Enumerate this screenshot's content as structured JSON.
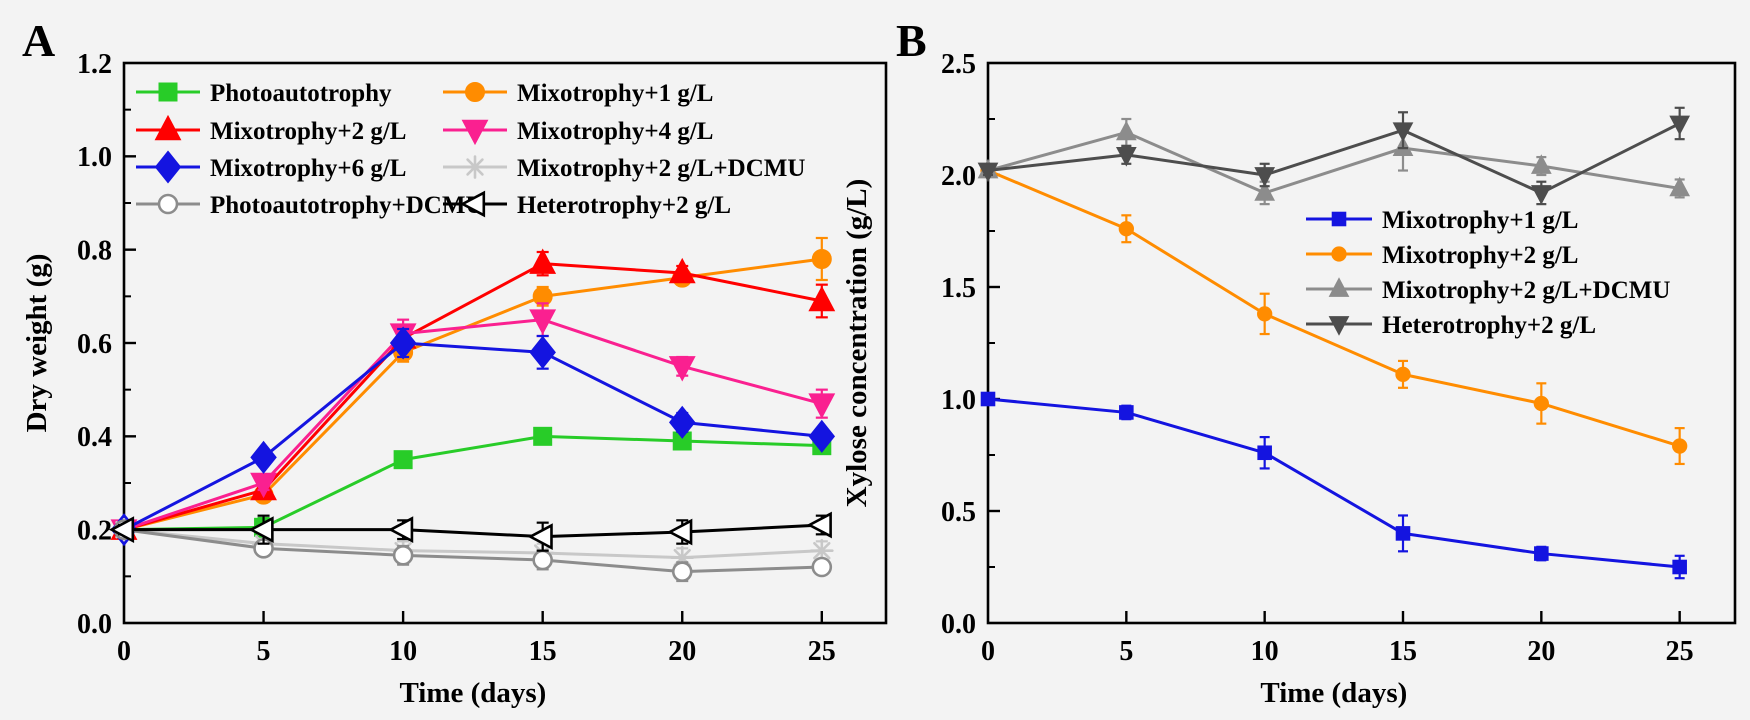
{
  "figure": {
    "background": "#f3f3f3",
    "panel_labels": [
      "A",
      "B"
    ]
  },
  "chart_data": [
    {
      "type": "line",
      "panel_label": "A",
      "title": "",
      "xlabel": "Time (days)",
      "ylabel": "Dry weight (g)",
      "x": [
        0,
        5,
        10,
        15,
        20,
        25
      ],
      "xlim": [
        0,
        27.3
      ],
      "ylim": [
        0,
        1.2
      ],
      "xticks": [
        "0",
        "5",
        "10",
        "15",
        "20",
        "25"
      ],
      "xtick_values": [
        0,
        5,
        10,
        15,
        20,
        25
      ],
      "ytick_labels": [
        "0.0",
        "0.2",
        "0.4",
        "0.6",
        "0.8",
        "1.0",
        "1.2"
      ],
      "ytick_values": [
        0,
        0.2,
        0.4,
        0.6,
        0.8,
        1.0,
        1.2
      ],
      "y_major_step": 0.2,
      "y_minor_step": 0.1,
      "grid": false,
      "legend_position": "top-left-inside",
      "legend_columns": 2,
      "series": [
        {
          "name": "Photoautotrophy",
          "color": "#28CC28",
          "marker": "square",
          "fill": "filled",
          "values": [
            0.2,
            0.205,
            0.35,
            0.4,
            0.39,
            0.38
          ],
          "errors": [
            0.01,
            0.02,
            0.015,
            0.015,
            0.01,
            0.01
          ]
        },
        {
          "name": "Mixotrophy+1 g/L",
          "color": "#FF8C00",
          "marker": "circle",
          "fill": "filled",
          "values": [
            0.2,
            0.275,
            0.58,
            0.7,
            0.74,
            0.78
          ],
          "errors": [
            0.01,
            0.015,
            0.02,
            0.02,
            0.015,
            0.045
          ]
        },
        {
          "name": "Mixotrophy+2 g/L",
          "color": "#FF0000",
          "marker": "triangle-up",
          "fill": "filled",
          "values": [
            0.2,
            0.285,
            0.61,
            0.77,
            0.75,
            0.69
          ],
          "errors": [
            0.01,
            0.015,
            0.02,
            0.025,
            0.015,
            0.035
          ]
        },
        {
          "name": "Mixotrophy+4 g/L",
          "color": "#FA2090",
          "marker": "triangle-down",
          "fill": "filled",
          "values": [
            0.2,
            0.3,
            0.62,
            0.65,
            0.55,
            0.47
          ],
          "errors": [
            0.01,
            0.015,
            0.03,
            0.035,
            0.02,
            0.03
          ]
        },
        {
          "name": "Mixotrophy+6 g/L",
          "color": "#1414E0",
          "marker": "diamond",
          "fill": "filled",
          "values": [
            0.2,
            0.355,
            0.6,
            0.58,
            0.43,
            0.4
          ],
          "errors": [
            0.01,
            0.01,
            0.03,
            0.035,
            0.02,
            0.015
          ]
        },
        {
          "name": "Mixotrophy+2 g/L+DCMU",
          "color": "#C8C8C8",
          "marker": "asterisk",
          "fill": "line",
          "values": [
            0.2,
            0.17,
            0.155,
            0.15,
            0.14,
            0.155
          ],
          "errors": [
            0.01,
            0.02,
            0.02,
            0.02,
            0.02,
            0.02
          ]
        },
        {
          "name": "Photoautotrophy+DCMU",
          "color": "#8C8C8C",
          "marker": "circle",
          "fill": "open",
          "values": [
            0.2,
            0.16,
            0.145,
            0.135,
            0.11,
            0.12
          ],
          "errors": [
            0.01,
            0.015,
            0.02,
            0.02,
            0.02,
            0.015
          ]
        },
        {
          "name": "Heterotrophy+2 g/L",
          "color": "#000000",
          "marker": "triangle-left",
          "fill": "open",
          "values": [
            0.2,
            0.2,
            0.2,
            0.185,
            0.195,
            0.21
          ],
          "errors": [
            0.01,
            0.03,
            0.02,
            0.03,
            0.025,
            0.02
          ]
        }
      ]
    },
    {
      "type": "line",
      "panel_label": "B",
      "title": "",
      "xlabel": "Time (days)",
      "ylabel": "Xylose concentration (g/L)",
      "x": [
        0,
        5,
        10,
        15,
        20,
        25
      ],
      "xlim": [
        0,
        27
      ],
      "ylim": [
        0,
        2.5
      ],
      "xticks": [
        "0",
        "5",
        "10",
        "15",
        "20",
        "25"
      ],
      "xtick_values": [
        0,
        5,
        10,
        15,
        20,
        25
      ],
      "ytick_labels": [
        "0.0",
        "0.5",
        "1.0",
        "1.5",
        "2.0",
        "2.5"
      ],
      "ytick_values": [
        0,
        0.5,
        1.0,
        1.5,
        2.0,
        2.5
      ],
      "y_major_step": 0.5,
      "y_minor_step": 0.25,
      "grid": false,
      "legend_position": "middle-right-inside",
      "legend_columns": 1,
      "series": [
        {
          "name": "Mixotrophy+1 g/L",
          "color": "#1414E0",
          "marker": "square",
          "fill": "filled",
          "values": [
            1.0,
            0.94,
            0.76,
            0.4,
            0.31,
            0.25
          ],
          "errors": [
            0.02,
            0.03,
            0.07,
            0.08,
            0.03,
            0.05
          ]
        },
        {
          "name": "Mixotrophy+2 g/L",
          "color": "#FF8C00",
          "marker": "circle",
          "fill": "filled",
          "values": [
            2.02,
            1.76,
            1.38,
            1.11,
            0.98,
            0.79
          ],
          "errors": [
            0.02,
            0.06,
            0.09,
            0.06,
            0.09,
            0.08
          ]
        },
        {
          "name": "Mixotrophy+2 g/L+DCMU",
          "color": "#8C8C8C",
          "marker": "triangle-up",
          "fill": "filled",
          "values": [
            2.02,
            2.19,
            1.92,
            2.12,
            2.04,
            1.94
          ],
          "errors": [
            0.02,
            0.06,
            0.05,
            0.1,
            0.04,
            0.04
          ]
        },
        {
          "name": "Heterotrophy+2 g/L",
          "color": "#4D4D4D",
          "marker": "triangle-down",
          "fill": "filled",
          "values": [
            2.02,
            2.09,
            2.0,
            2.2,
            1.92,
            2.23
          ],
          "errors": [
            0.02,
            0.04,
            0.05,
            0.08,
            0.05,
            0.07
          ]
        }
      ]
    }
  ]
}
